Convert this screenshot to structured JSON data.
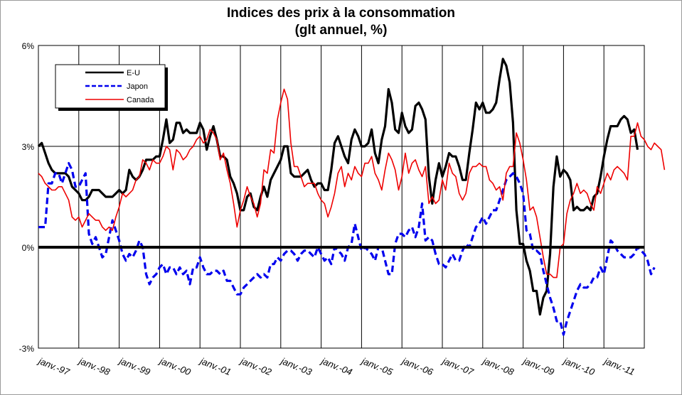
{
  "chart_data": {
    "type": "line",
    "title": "Indices des prix à la consommation",
    "subtitle": "(glt annuel, %)",
    "xlabel": "",
    "ylabel": "",
    "x_start": "1997-01",
    "x_ticks": [
      "janv.-97",
      "janv.-98",
      "janv.-99",
      "janv.-00",
      "janv.-01",
      "janv.-02",
      "janv.-03",
      "janv.-04",
      "janv.-05",
      "janv.-06",
      "janv.-07",
      "janv.-08",
      "janv.-09",
      "janv.-10",
      "janv.-11"
    ],
    "y_ticks": [
      "-3%",
      "0%",
      "3%",
      "6%"
    ],
    "ylim": [
      -3,
      6
    ],
    "legend_position": "top-left",
    "grid": true,
    "series": [
      {
        "name": "E-U",
        "color": "#000000",
        "style": "solid",
        "values": [
          3.0,
          3.1,
          2.8,
          2.5,
          2.3,
          2.2,
          2.2,
          2.2,
          2.2,
          2.1,
          1.8,
          1.7,
          1.6,
          1.4,
          1.4,
          1.5,
          1.7,
          1.7,
          1.7,
          1.6,
          1.5,
          1.5,
          1.5,
          1.6,
          1.7,
          1.6,
          1.7,
          2.3,
          2.1,
          2.0,
          2.1,
          2.3,
          2.6,
          2.6,
          2.6,
          2.7,
          2.7,
          3.2,
          3.8,
          3.1,
          3.2,
          3.7,
          3.7,
          3.4,
          3.5,
          3.4,
          3.4,
          3.4,
          3.7,
          3.5,
          2.9,
          3.3,
          3.6,
          3.2,
          2.7,
          2.7,
          2.6,
          2.1,
          1.9,
          1.6,
          1.1,
          1.1,
          1.5,
          1.6,
          1.2,
          1.1,
          1.5,
          1.8,
          1.5,
          2.0,
          2.2,
          2.4,
          2.6,
          3.0,
          3.0,
          2.2,
          2.1,
          2.1,
          2.1,
          2.2,
          2.3,
          2.0,
          1.8,
          1.9,
          1.9,
          1.7,
          1.7,
          2.3,
          3.1,
          3.3,
          3.0,
          2.7,
          2.5,
          3.2,
          3.5,
          3.3,
          3.0,
          3.0,
          3.1,
          3.5,
          2.8,
          2.5,
          3.2,
          3.6,
          4.7,
          4.3,
          3.5,
          3.4,
          4.0,
          3.6,
          3.4,
          3.5,
          4.2,
          4.3,
          4.1,
          3.8,
          2.1,
          1.3,
          2.0,
          2.5,
          2.1,
          2.4,
          2.8,
          2.7,
          2.7,
          2.4,
          2.0,
          2.0,
          2.8,
          3.5,
          4.3,
          4.1,
          4.3,
          4.0,
          4.0,
          4.1,
          4.3,
          5.0,
          5.6,
          5.4,
          4.9,
          3.7,
          1.1,
          0.1,
          0.1,
          -0.4,
          -0.7,
          -1.3,
          -1.3,
          -2.0,
          -1.5,
          -1.3,
          -0.2,
          1.8,
          2.7,
          2.1,
          2.3,
          2.2,
          2.0,
          1.1,
          1.2,
          1.1,
          1.1,
          1.2,
          1.1,
          1.5,
          1.6,
          2.1,
          2.7,
          3.2,
          3.6,
          3.6,
          3.6,
          3.8,
          3.9,
          3.8,
          3.4,
          3.5,
          2.9
        ]
      },
      {
        "name": "Japon",
        "color": "#0000ee",
        "style": "dashed",
        "values": [
          0.6,
          0.6,
          0.6,
          1.9,
          1.9,
          2.2,
          2.2,
          1.9,
          2.2,
          2.5,
          2.3,
          1.8,
          1.8,
          2.0,
          2.2,
          0.4,
          0.1,
          0.3,
          0.0,
          -0.3,
          -0.2,
          0.3,
          0.8,
          0.5,
          0.2,
          -0.2,
          -0.4,
          -0.2,
          -0.3,
          -0.1,
          0.2,
          0.0,
          -0.8,
          -1.1,
          -0.9,
          -0.8,
          -0.6,
          -0.5,
          -0.8,
          -0.6,
          -0.6,
          -0.8,
          -0.6,
          -0.8,
          -0.7,
          -1.1,
          -0.6,
          -0.6,
          -0.3,
          -0.6,
          -0.8,
          -0.8,
          -0.7,
          -0.7,
          -0.8,
          -0.7,
          -1.0,
          -1.0,
          -1.2,
          -1.4,
          -1.4,
          -1.2,
          -1.1,
          -1.0,
          -0.9,
          -0.8,
          -0.9,
          -0.8,
          -0.9,
          -0.5,
          -0.5,
          -0.3,
          -0.4,
          -0.2,
          -0.1,
          -0.1,
          -0.2,
          -0.4,
          -0.2,
          -0.1,
          -0.1,
          -0.2,
          -0.3,
          0.0,
          -0.2,
          -0.4,
          -0.3,
          -0.5,
          0.0,
          -0.1,
          -0.2,
          -0.4,
          0.0,
          0.1,
          0.7,
          0.3,
          -0.1,
          0.0,
          -0.1,
          -0.2,
          -0.4,
          0.0,
          0.0,
          -0.4,
          -0.8,
          -0.8,
          0.1,
          0.4,
          0.4,
          0.3,
          0.5,
          0.6,
          0.3,
          0.6,
          1.3,
          0.2,
          0.3,
          0.2,
          -0.2,
          -0.5,
          -0.5,
          -0.6,
          -0.4,
          -0.2,
          -0.4,
          -0.4,
          -0.1,
          0.1,
          0.0,
          0.3,
          0.6,
          0.7,
          0.9,
          0.7,
          0.9,
          1.1,
          1.1,
          1.4,
          1.7,
          2.0,
          2.1,
          2.2,
          2.1,
          1.9,
          1.6,
          0.5,
          0.4,
          -0.1,
          -0.1,
          -0.2,
          -0.7,
          -1.1,
          -1.5,
          -1.8,
          -2.2,
          -2.2,
          -2.6,
          -2.2,
          -1.9,
          -1.6,
          -1.3,
          -1.1,
          -1.2,
          -1.2,
          -1.1,
          -0.9,
          -0.9,
          -0.6,
          -0.8,
          -0.3,
          0.2,
          0.1,
          -0.1,
          -0.2,
          -0.3,
          -0.3,
          -0.3,
          -0.2,
          0.0,
          -0.1,
          -0.2,
          -0.4,
          -0.8,
          -0.6
        ]
      },
      {
        "name": "Canada",
        "color": "#ee0000",
        "style": "solid",
        "values": [
          2.2,
          2.1,
          1.9,
          1.8,
          1.7,
          1.7,
          1.8,
          1.8,
          1.6,
          1.4,
          0.9,
          0.8,
          0.9,
          0.6,
          0.8,
          1.0,
          0.9,
          0.8,
          0.8,
          0.6,
          0.5,
          0.6,
          0.5,
          0.9,
          1.2,
          1.6,
          1.5,
          1.6,
          1.7,
          2.0,
          2.1,
          2.6,
          2.5,
          2.3,
          2.6,
          2.5,
          2.5,
          2.7,
          3.0,
          2.9,
          2.3,
          2.9,
          2.8,
          2.6,
          2.7,
          2.9,
          3.0,
          3.2,
          3.3,
          3.1,
          3.2,
          3.5,
          3.4,
          3.2,
          2.6,
          2.8,
          2.3,
          1.9,
          1.3,
          0.6,
          1.1,
          1.4,
          1.8,
          1.5,
          1.3,
          0.9,
          1.3,
          2.3,
          2.2,
          2.9,
          2.8,
          3.8,
          4.3,
          4.7,
          4.4,
          3.1,
          2.4,
          2.4,
          2.1,
          1.8,
          1.9,
          1.9,
          1.9,
          1.6,
          1.4,
          1.3,
          0.9,
          1.2,
          1.6,
          2.2,
          2.4,
          1.8,
          2.2,
          2.0,
          2.4,
          2.2,
          2.1,
          2.5,
          2.5,
          2.7,
          2.2,
          2.0,
          1.7,
          2.3,
          2.8,
          2.6,
          2.3,
          1.7,
          2.1,
          2.8,
          2.2,
          2.5,
          2.6,
          2.3,
          2.1,
          2.4,
          1.3,
          1.5,
          1.3,
          1.4,
          2.0,
          1.7,
          2.5,
          2.2,
          2.1,
          1.6,
          1.4,
          1.6,
          2.2,
          2.4,
          2.4,
          2.5,
          2.4,
          2.4,
          2.0,
          1.9,
          1.7,
          1.8,
          1.4,
          2.2,
          2.4,
          2.4,
          3.4,
          3.1,
          2.6,
          2.0,
          1.1,
          1.2,
          0.9,
          0.3,
          -0.3,
          -0.8,
          -0.8,
          -0.9,
          -0.9,
          0.0,
          0.1,
          1.0,
          1.4,
          1.6,
          1.9,
          1.6,
          1.7,
          1.6,
          1.3,
          1.1,
          1.8,
          1.6,
          1.9,
          2.2,
          2.0,
          2.3,
          2.4,
          2.3,
          2.2,
          2.0,
          3.3,
          3.3,
          3.7,
          3.3,
          3.2,
          3.0,
          2.9,
          3.1,
          3.0,
          2.9,
          2.3
        ]
      }
    ]
  }
}
